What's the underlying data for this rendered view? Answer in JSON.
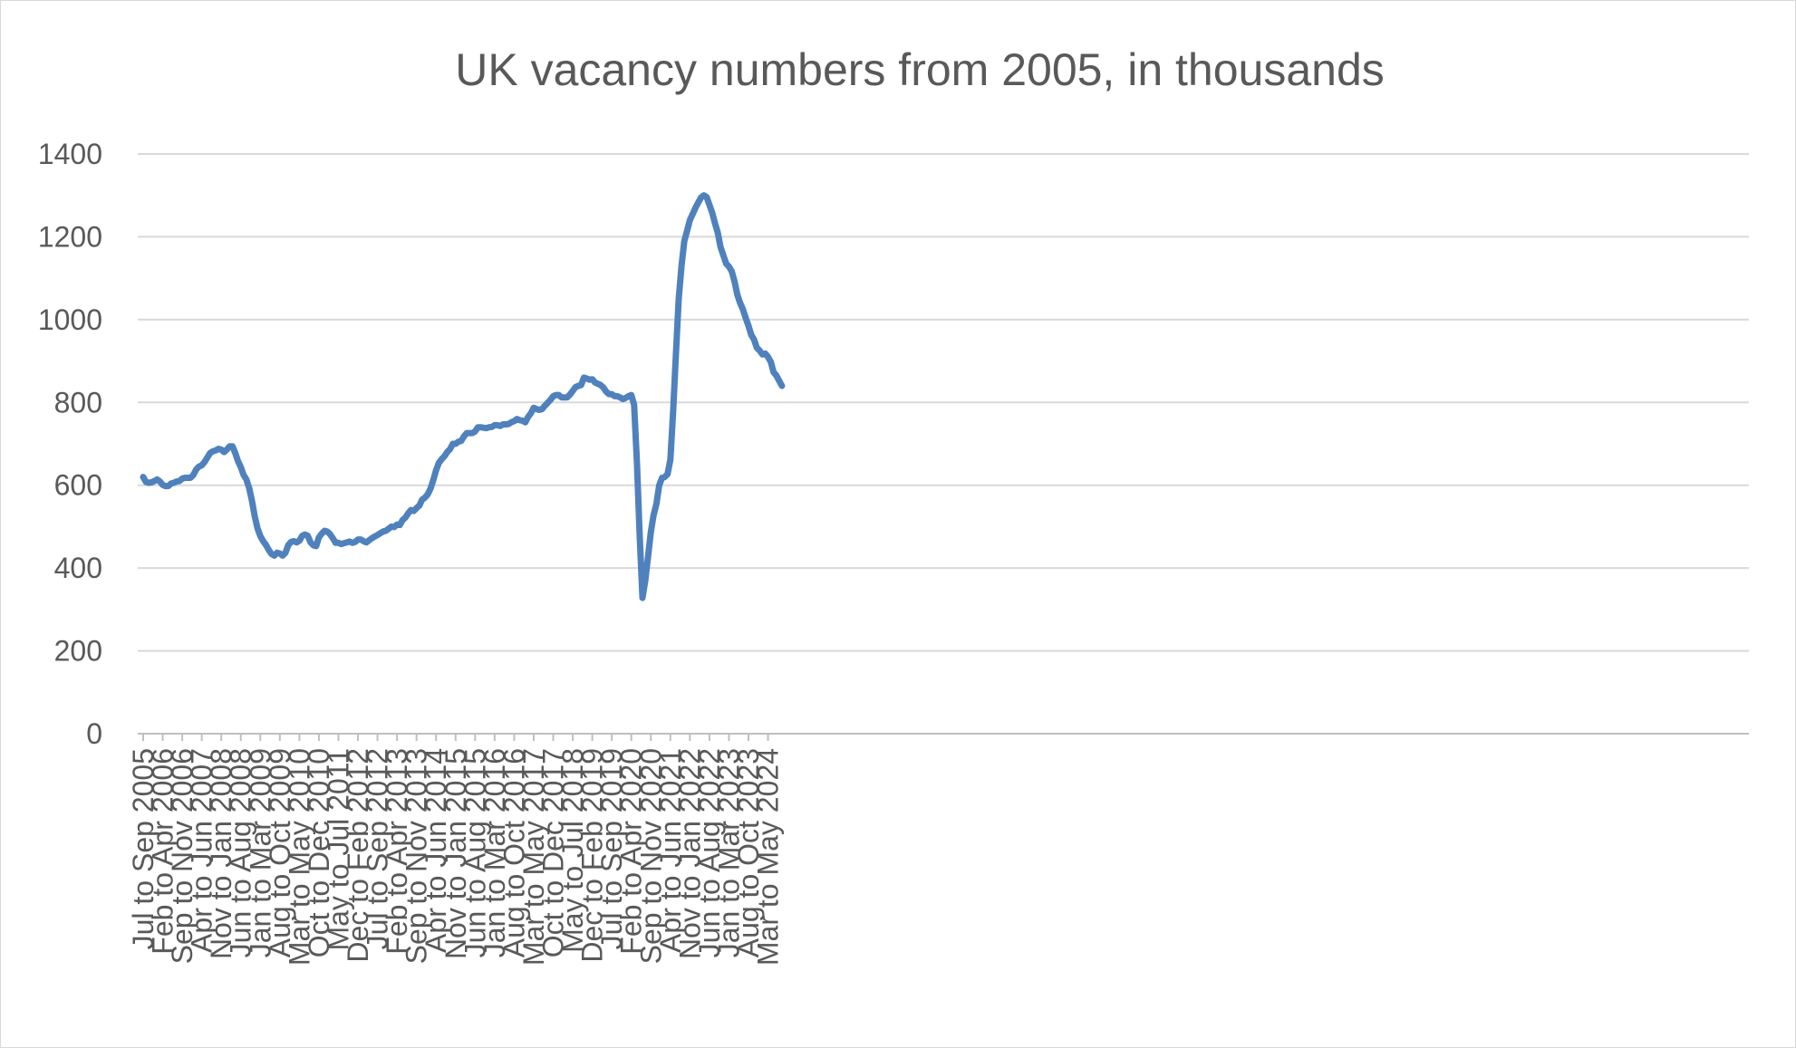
{
  "chart_data": {
    "type": "line",
    "title": "UK vacancy numbers from 2005, in thousands",
    "xlabel": "",
    "ylabel": "",
    "ylim": [
      0,
      1400
    ],
    "yticks": [
      0,
      200,
      400,
      600,
      800,
      1000,
      1200,
      1400
    ],
    "grid": true,
    "legend": "none",
    "line_color": "#4f81bd",
    "x_tick_labels": [
      "Jul to Sep 2005",
      "Feb to Apr 2006",
      "Sep to Nov 2006",
      "Apr to Jun 2007",
      "Nov to Jan 2008",
      "Jun to Aug 2008",
      "Jan to Mar 2009",
      "Aug to Oct 2009",
      "Mar to May 2010",
      "Oct to Dec 2010",
      "May to Jul 2011",
      "Dec to Feb 2012",
      "Jul to Sep 2012",
      "Feb to Apr 2013",
      "Sep to Nov 2013",
      "Apr to Jun 2014",
      "Nov to Jan 2015",
      "Jun to Aug 2015",
      "Jan to Mar 2016",
      "Aug to Oct 2016",
      "Mar to May 2017",
      "Oct to Dec 2017",
      "May to Jul 2018",
      "Dec to Feb 2019",
      "Jul to Sep 2019",
      "Feb to Apr 2020",
      "Sep to Nov 2020",
      "Apr to Jun 2021",
      "Nov to Jan 2022",
      "Jun to Aug 2022",
      "Jan to Mar 2023",
      "Aug to Oct 2023",
      "Mar to May 2024"
    ],
    "series": [
      {
        "name": "",
        "x_start": "Jul to Sep 2005",
        "x_end": "Jul to Sep 2024",
        "values": [
          620,
          608,
          606,
          607,
          610,
          614,
          609,
          601,
          598,
          598,
          604,
          606,
          609,
          610,
          616,
          618,
          618,
          618,
          625,
          638,
          645,
          648,
          656,
          667,
          678,
          682,
          684,
          688,
          686,
          680,
          686,
          694,
          694,
          678,
          658,
          644,
          625,
          614,
          593,
          562,
          525,
          496,
          477,
          465,
          456,
          444,
          434,
          430,
          437,
          435,
          430,
          437,
          455,
          463,
          465,
          462,
          466,
          478,
          481,
          478,
          462,
          455,
          453,
          474,
          483,
          490,
          488,
          482,
          472,
          461,
          461,
          458,
          460,
          462,
          464,
          461,
          463,
          469,
          469,
          465,
          462,
          467,
          472,
          476,
          480,
          484,
          488,
          490,
          495,
          500,
          499,
          505,
          504,
          516,
          522,
          532,
          540,
          538,
          545,
          551,
          565,
          570,
          578,
          592,
          612,
          636,
          654,
          663,
          670,
          680,
          687,
          700,
          700,
          705,
          707,
          718,
          726,
          726,
          726,
          730,
          740,
          740,
          739,
          738,
          740,
          741,
          745,
          745,
          743,
          747,
          747,
          748,
          752,
          755,
          760,
          757,
          756,
          752,
          765,
          774,
          787,
          784,
          782,
          784,
          792,
          799,
          806,
          815,
          818,
          818,
          812,
          812,
          812,
          819,
          828,
          837,
          840,
          842,
          860,
          858,
          855,
          856,
          848,
          845,
          842,
          836,
          826,
          820,
          820,
          815,
          815,
          812,
          808,
          811,
          815,
          818,
          794,
          655,
          480,
          328,
          370,
          428,
          488,
          528,
          555,
          600,
          618,
          620,
          627,
          662,
          780,
          920,
          1050,
          1130,
          1190,
          1215,
          1240,
          1255,
          1270,
          1283,
          1295,
          1300,
          1296,
          1277,
          1258,
          1232,
          1210,
          1175,
          1155,
          1135,
          1128,
          1117,
          1092,
          1060,
          1040,
          1025,
          1004,
          985,
          963,
          952,
          932,
          925,
          916,
          918,
          910,
          898,
          873,
          865,
          852,
          840
        ]
      }
    ]
  }
}
